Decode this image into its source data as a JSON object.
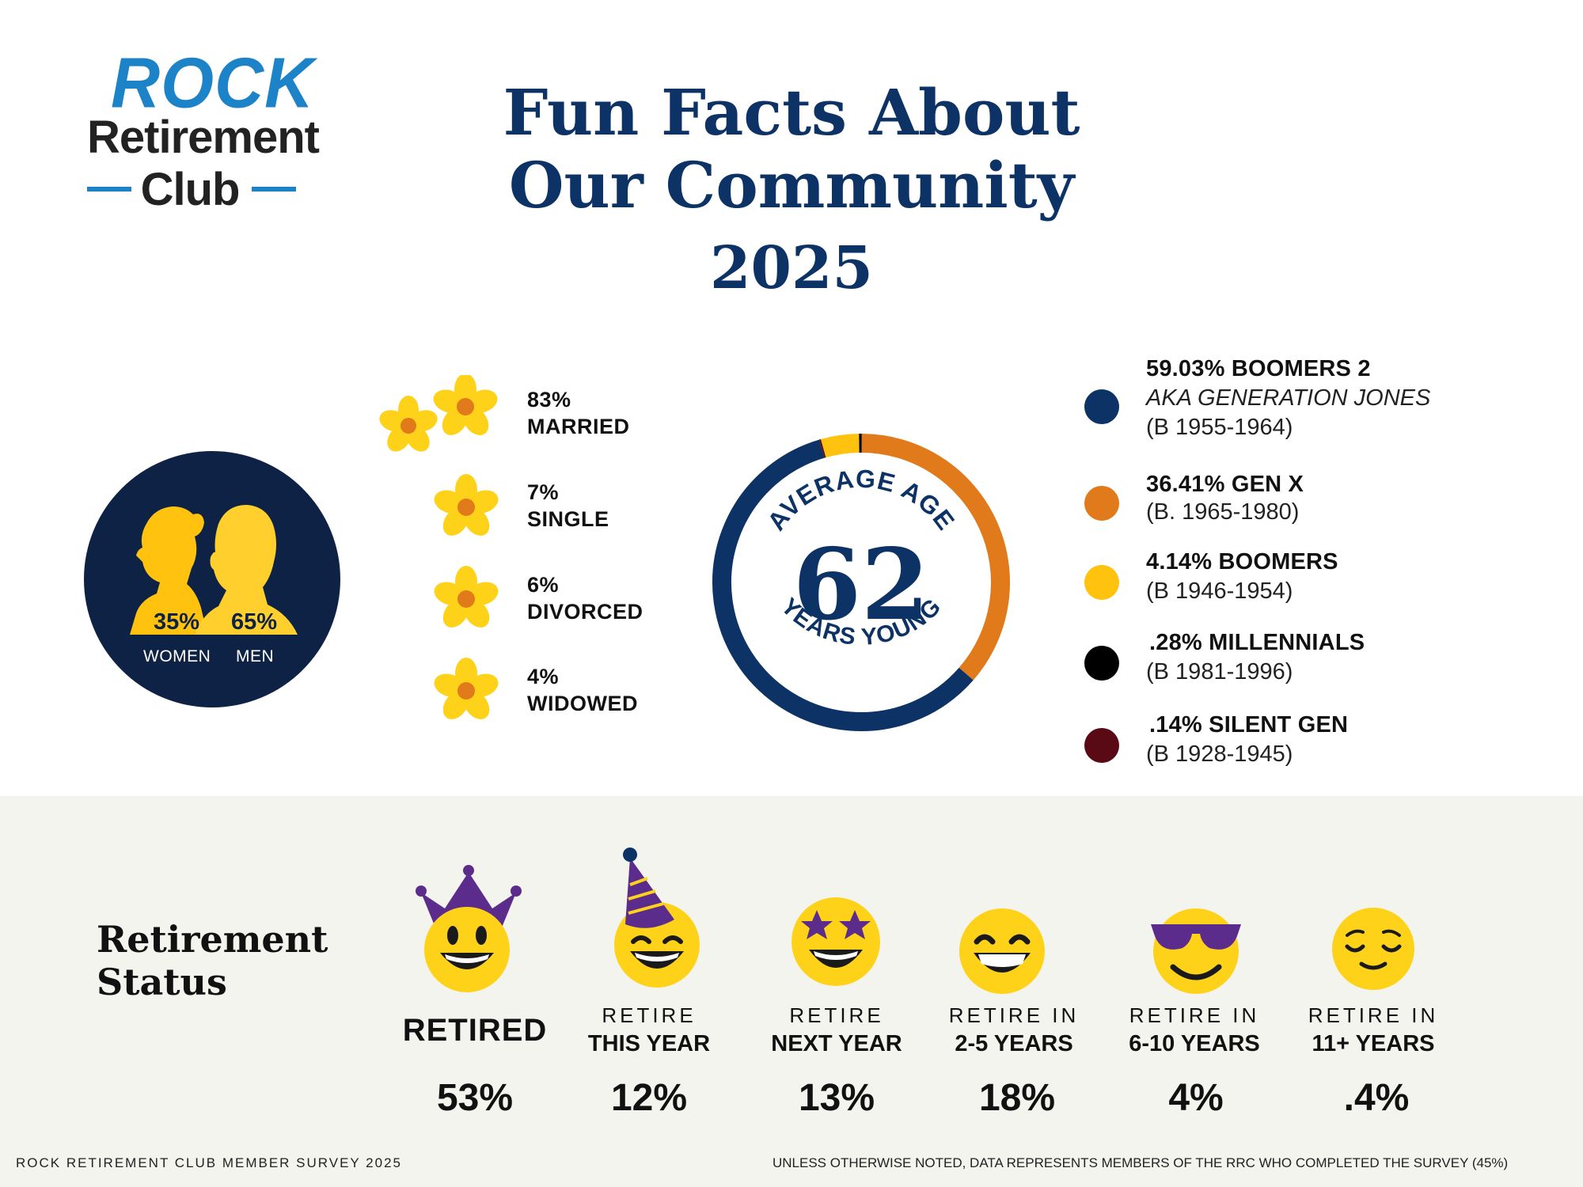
{
  "logo": {
    "line1": "ROCK",
    "line2": "Retirement",
    "line3": "Club"
  },
  "title": {
    "line1": "Fun Facts About",
    "line2": "Our Community",
    "year": "2025"
  },
  "gender": {
    "women": {
      "pct": "35%",
      "label": "WOMEN"
    },
    "men": {
      "pct": "65%",
      "label": "MEN"
    },
    "women_value": 35,
    "men_value": 65
  },
  "marital": [
    {
      "pct": "83%",
      "label": "MARRIED",
      "value": 83
    },
    {
      "pct": "7%",
      "label": "SINGLE",
      "value": 7
    },
    {
      "pct": "6%",
      "label": "DIVORCED",
      "value": 6
    },
    {
      "pct": "4%",
      "label": "WIDOWED",
      "value": 4
    }
  ],
  "age": {
    "top_text": "AVERAGE AGE",
    "number": "62",
    "bottom_text": "YEARS YOUNG"
  },
  "generations": [
    {
      "name": "59.03% BOOMERS 2",
      "aka": "AKA GENERATION JONES",
      "years": "(B 1955-1964)",
      "value": 59.03,
      "color": "#0d3366"
    },
    {
      "name": "36.41% GEN X",
      "years": "(B. 1965-1980)",
      "value": 36.41,
      "color": "#e07a1a"
    },
    {
      "name": "4.14% BOOMERS",
      "years": "(B 1946-1954)",
      "value": 4.14,
      "color": "#ffc20e"
    },
    {
      "name": ".28% MILLENNIALS",
      "years": "(B 1981-1996)",
      "value": 0.28,
      "color": "#000000"
    },
    {
      "name": ".14% SILENT GEN",
      "years": "(B  1928-1945)",
      "value": 0.14,
      "color": "#5a0a14"
    }
  ],
  "retirement": {
    "title_line1": "Retirement",
    "title_line2": "Status",
    "items": [
      {
        "top": "",
        "bottom": "RETIRED",
        "pct": "53%",
        "icon": "crown-smiley-icon"
      },
      {
        "top": "RETIRE",
        "bottom": "THIS YEAR",
        "pct": "12%",
        "icon": "party-hat-smiley-icon"
      },
      {
        "top": "RETIRE",
        "bottom": "NEXT YEAR",
        "pct": "13%",
        "icon": "star-eyes-smiley-icon"
      },
      {
        "top": "RETIRE IN",
        "bottom": "2-5 YEARS",
        "pct": "18%",
        "icon": "grin-smiley-icon"
      },
      {
        "top": "RETIRE IN",
        "bottom": "6-10 YEARS",
        "pct": "4%",
        "icon": "sunglasses-smiley-icon"
      },
      {
        "top": "RETIRE IN",
        "bottom": "11+ YEARS",
        "pct": ".4%",
        "icon": "relieved-smiley-icon"
      }
    ]
  },
  "footer": {
    "left": "ROCK RETIREMENT CLUB MEMBER SURVEY 2025",
    "right": "UNLESS OTHERWISE NOTED, DATA REPRESENTS MEMBERS OF THE RRC WHO COMPLETED THE SURVEY (45%)"
  },
  "colors": {
    "navy": "#0d3366",
    "blue": "#1d83c9",
    "orange": "#e07a1a",
    "yellow": "#ffc20e",
    "purple": "#5b2c8c"
  }
}
